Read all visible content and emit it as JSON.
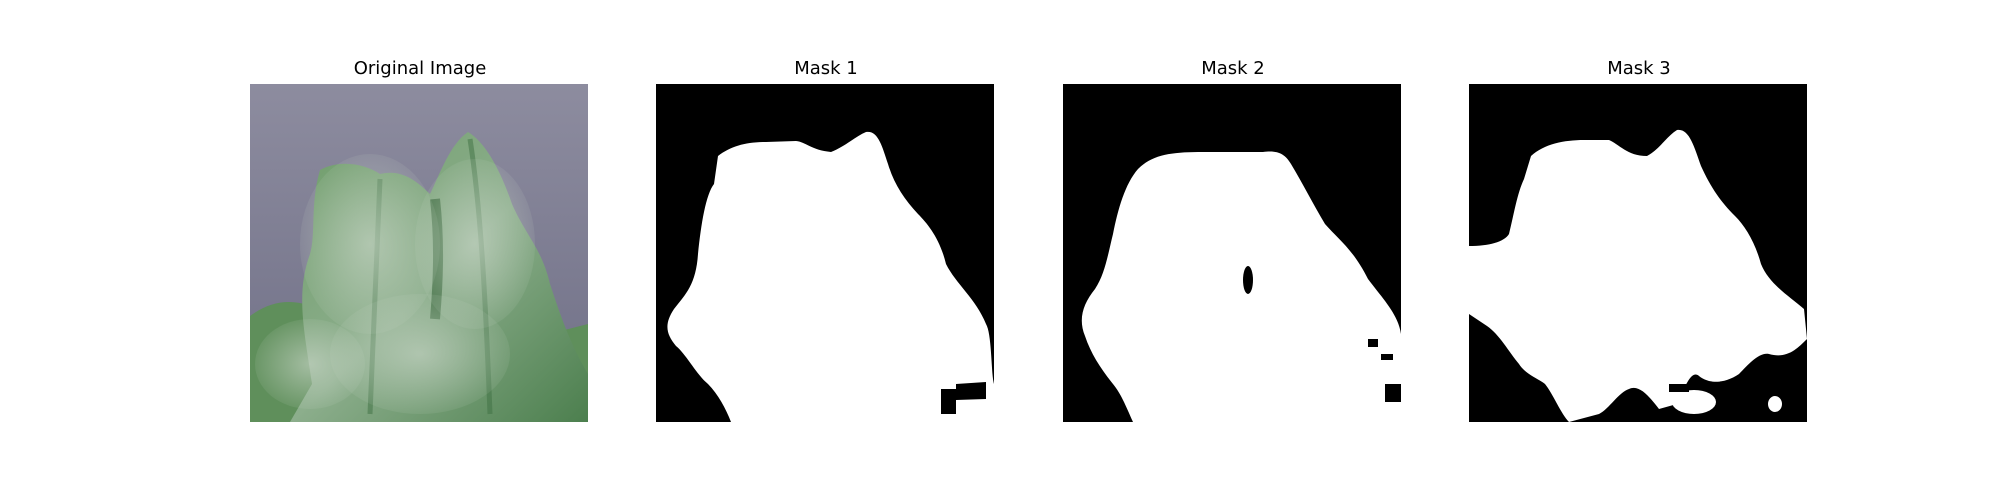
{
  "figure": {
    "panels": [
      {
        "title": "Original Image"
      },
      {
        "title": "Mask 1"
      },
      {
        "title": "Mask 2"
      },
      {
        "title": "Mask 3"
      }
    ]
  },
  "colors": {
    "background": "#ffffff",
    "mask_foreground": "#ffffff",
    "mask_background": "#000000",
    "photo_backdrop": "#8a8aa0",
    "leaf_green": "#4f8a4a",
    "leaf_pale": "#9fb8a0",
    "leaf_dark": "#2f6a35"
  },
  "icons": {
    "original": "leaf-photo",
    "mask1": "binary-mask",
    "mask2": "binary-mask",
    "mask3": "binary-mask"
  }
}
